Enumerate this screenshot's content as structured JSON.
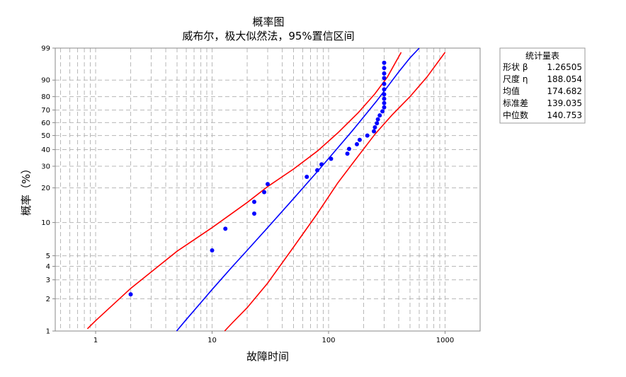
{
  "chart_data": {
    "type": "scatter",
    "title": "概率图",
    "subtitle": "威布尔，极大似然法，95%置信区间",
    "xlabel": "故障时间",
    "ylabel": "概率（%）",
    "x_scale": "log",
    "y_scale": "weibull",
    "xlim": [
      0.45,
      2000
    ],
    "ylim": [
      1,
      99
    ],
    "x_ticks": [
      1,
      10,
      100,
      1000
    ],
    "y_ticks": [
      1,
      2,
      3,
      4,
      5,
      10,
      20,
      30,
      40,
      50,
      60,
      70,
      80,
      90,
      99
    ],
    "grid": true,
    "points": {
      "color": "#0000ff",
      "x": [
        2,
        10,
        13,
        23,
        23,
        28,
        30,
        65,
        80,
        87,
        105,
        145,
        150,
        175,
        185,
        215,
        245,
        250,
        260,
        265,
        275,
        290,
        300,
        300,
        300,
        300,
        300,
        300,
        300,
        300,
        300,
        300
      ],
      "y": [
        2.2,
        5.6,
        8.8,
        12.0,
        15.2,
        18.4,
        21.5,
        24.7,
        27.9,
        31.0,
        34.2,
        37.4,
        40.5,
        43.7,
        46.8,
        50.0,
        53.2,
        56.3,
        59.5,
        62.6,
        65.8,
        69.0,
        72.1,
        75.3,
        78.5,
        81.6,
        84.8,
        88.0,
        91.0,
        93.0,
        95.0,
        96.5
      ]
    },
    "fit_line": {
      "color": "#0000ff",
      "x": [
        4.96,
        6,
        8,
        10,
        15,
        20,
        30,
        50,
        80,
        120,
        160,
        200,
        260,
        320,
        400,
        500,
        600
      ],
      "y": [
        1,
        1.28,
        1.84,
        2.44,
        4.0,
        5.6,
        9.0,
        16.2,
        27.2,
        41.2,
        53.7,
        64.5,
        77.2,
        86.3,
        93.6,
        97.6,
        99
      ]
    },
    "upper_bound": {
      "color": "#ff0000",
      "x": [
        0.85,
        1,
        2,
        5,
        10,
        20,
        30,
        50,
        80,
        120,
        180,
        250,
        320,
        420
      ],
      "y": [
        1.05,
        1.25,
        2.5,
        5.5,
        9.0,
        15.0,
        20.5,
        28.5,
        39.0,
        52.0,
        68.0,
        82.0,
        91.5,
        98.5
      ]
    },
    "lower_bound": {
      "color": "#ff0000",
      "x": [
        12.8,
        15,
        20,
        30,
        50,
        80,
        120,
        180,
        250,
        350,
        500,
        700,
        1000
      ],
      "y": [
        1,
        1.2,
        1.65,
        2.8,
        6.0,
        12.0,
        22.0,
        36.0,
        51.0,
        66.0,
        80.0,
        91.5,
        98.5
      ]
    }
  },
  "stats_table": {
    "title": "统计量表",
    "rows": [
      {
        "label": "形状 β",
        "value": "1.26505"
      },
      {
        "label": "尺度 η",
        "value": "188.054"
      },
      {
        "label": "均值",
        "value": "174.682"
      },
      {
        "label": "标准差",
        "value": "139.035"
      },
      {
        "label": "中位数",
        "value": "140.753"
      }
    ]
  }
}
